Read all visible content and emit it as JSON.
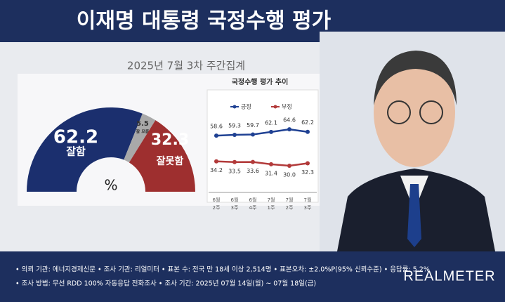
{
  "header": {
    "title": "이재명 대통령 국정수행 평가"
  },
  "chart_data": [
    {
      "type": "pie",
      "title": "2025년 7월 3차 주간집계",
      "unit": "%",
      "categories": [
        "잘함",
        "잘 모름",
        "잘못함"
      ],
      "values": [
        62.2,
        5.5,
        32.3
      ],
      "colors": [
        "#1b2f6e",
        "#a9a9a9",
        "#9e2f2f"
      ]
    },
    {
      "type": "line",
      "title": "국정수행 평가 추이",
      "categories": [
        "6월 2주",
        "6월 3주",
        "6월 4주",
        "7월 1주",
        "7월 2주",
        "7월 3주"
      ],
      "series": [
        {
          "name": "긍정",
          "color": "#1f4193",
          "values": [
            58.6,
            59.3,
            59.7,
            62.1,
            64.6,
            62.2
          ]
        },
        {
          "name": "부정",
          "color": "#b23a3a",
          "values": [
            34.2,
            33.5,
            33.6,
            31.4,
            30.0,
            32.3
          ],
          "value_labels": [
            "34.2",
            "33.5",
            "33.6",
            "31.4",
            "30.0",
            "32.3"
          ]
        }
      ]
    }
  ],
  "notes": [
    "• 의뢰 기관: 에너지경제신문  • 조사 기관: 리얼미터  • 표본 수: 전국 만 18세 이상 2,514명  • 표본오차: ±2.0%P(95% 신뢰수준)  • 응답률: 5.2%",
    "• 조사 방법: 무선 RDD 100% 자동응답 전화조사  • 조사 기간: 2025년 07월 14일(월) ~ 07월 18일(금)"
  ],
  "logo": "REALMETER"
}
